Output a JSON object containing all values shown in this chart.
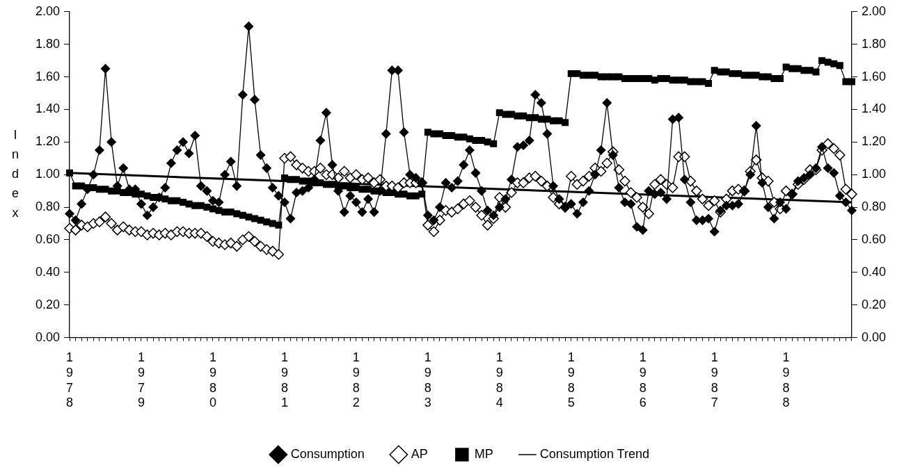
{
  "chart_data": {
    "type": "line",
    "ylabel": "Index",
    "categories": [
      "1978",
      null,
      null,
      null,
      null,
      null,
      null,
      null,
      null,
      null,
      null,
      null,
      "1979",
      null,
      null,
      null,
      null,
      null,
      null,
      null,
      null,
      null,
      null,
      null,
      "1980",
      null,
      null,
      null,
      null,
      null,
      null,
      null,
      null,
      null,
      null,
      null,
      "1981",
      null,
      null,
      null,
      null,
      null,
      null,
      null,
      null,
      null,
      null,
      null,
      "1982",
      null,
      null,
      null,
      null,
      null,
      null,
      null,
      null,
      null,
      null,
      null,
      "1983",
      null,
      null,
      null,
      null,
      null,
      null,
      null,
      null,
      null,
      null,
      null,
      "1984",
      null,
      null,
      null,
      null,
      null,
      null,
      null,
      null,
      null,
      null,
      null,
      "1985",
      null,
      null,
      null,
      null,
      null,
      null,
      null,
      null,
      null,
      null,
      null,
      "1986",
      null,
      null,
      null,
      null,
      null,
      null,
      null,
      null,
      null,
      null,
      null,
      "1987",
      null,
      null,
      null,
      null,
      null,
      null,
      null,
      null,
      null,
      null,
      null,
      "1988",
      null,
      null,
      null,
      null,
      null,
      null,
      null,
      null,
      null,
      null,
      null
    ],
    "series": [
      {
        "name": "Consumption",
        "color": "#000000",
        "marker": "diamond",
        "values": [
          0.76,
          0.72,
          0.82,
          0.91,
          1.0,
          1.15,
          1.65,
          1.2,
          0.93,
          1.04,
          0.91,
          0.91,
          0.82,
          0.75,
          0.8,
          0.86,
          0.92,
          1.07,
          1.15,
          1.2,
          1.13,
          1.24,
          0.93,
          0.9,
          0.84,
          0.83,
          1.0,
          1.08,
          0.93,
          1.49,
          1.91,
          1.46,
          1.12,
          1.04,
          0.92,
          0.87,
          0.83,
          0.73,
          0.89,
          0.9,
          0.92,
          0.97,
          1.21,
          1.38,
          1.06,
          0.9,
          0.77,
          0.87,
          0.83,
          0.77,
          0.85,
          0.77,
          0.9,
          1.25,
          1.64,
          1.64,
          1.26,
          1.0,
          0.98,
          0.95,
          0.75,
          0.72,
          0.8,
          0.95,
          0.92,
          0.96,
          1.06,
          1.15,
          1.01,
          0.9,
          0.78,
          0.75,
          0.8,
          0.85,
          0.97,
          1.17,
          1.18,
          1.21,
          1.49,
          1.44,
          1.25,
          0.93,
          0.85,
          0.8,
          0.82,
          0.76,
          0.83,
          0.9,
          1.0,
          1.15,
          1.44,
          1.12,
          0.92,
          0.83,
          0.82,
          0.68,
          0.66,
          0.9,
          0.88,
          0.89,
          0.85,
          1.34,
          1.35,
          0.97,
          0.83,
          0.72,
          0.72,
          0.73,
          0.65,
          0.78,
          0.81,
          0.81,
          0.82,
          0.9,
          1.0,
          1.3,
          0.95,
          0.8,
          0.73,
          0.83,
          0.79,
          0.88,
          0.96,
          0.98,
          1.0,
          1.04,
          1.17,
          1.04,
          1.01,
          0.87,
          0.83,
          0.78
        ]
      },
      {
        "name": "AP",
        "color": "#ffffff",
        "marker": "diamond",
        "values": [
          0.67,
          0.66,
          0.69,
          0.68,
          0.7,
          0.71,
          0.74,
          0.7,
          0.66,
          0.68,
          0.66,
          0.65,
          0.65,
          0.63,
          0.64,
          0.63,
          0.64,
          0.63,
          0.65,
          0.65,
          0.64,
          0.64,
          0.64,
          0.62,
          0.59,
          0.58,
          0.57,
          0.58,
          0.56,
          0.6,
          0.62,
          0.59,
          0.56,
          0.54,
          0.53,
          0.51,
          1.1,
          1.11,
          1.06,
          1.04,
          1.02,
          1.02,
          1.04,
          1.0,
          1.0,
          0.98,
          1.02,
          0.98,
          1.0,
          0.97,
          0.98,
          0.95,
          0.97,
          0.93,
          0.93,
          0.92,
          0.95,
          0.95,
          0.95,
          0.95,
          0.69,
          0.65,
          0.72,
          0.78,
          0.77,
          0.79,
          0.82,
          0.84,
          0.8,
          0.75,
          0.69,
          0.73,
          0.86,
          0.8,
          0.89,
          0.95,
          0.95,
          0.98,
          0.99,
          0.96,
          0.93,
          0.86,
          0.82,
          0.8,
          0.99,
          0.94,
          0.96,
          0.99,
          1.04,
          1.02,
          1.07,
          1.14,
          1.03,
          0.96,
          0.89,
          0.86,
          0.8,
          0.76,
          0.94,
          0.97,
          0.94,
          0.92,
          1.11,
          1.11,
          0.96,
          0.9,
          0.85,
          0.81,
          0.84,
          0.77,
          0.85,
          0.9,
          0.91,
          0.9,
          1.02,
          1.09,
          0.98,
          0.96,
          0.83,
          0.79,
          0.9,
          0.88,
          0.94,
          0.97,
          1.03,
          1.03,
          1.15,
          1.19,
          1.16,
          1.12,
          0.91,
          0.88
        ]
      },
      {
        "name": "MP",
        "color": "#000000",
        "marker": "square",
        "values": [
          1.01,
          0.93,
          0.93,
          0.92,
          0.92,
          0.91,
          0.91,
          0.9,
          0.9,
          0.89,
          0.89,
          0.88,
          0.88,
          0.87,
          0.86,
          0.86,
          0.85,
          0.84,
          0.84,
          0.83,
          0.82,
          0.81,
          0.81,
          0.8,
          0.79,
          0.78,
          0.77,
          0.77,
          0.76,
          0.75,
          0.74,
          0.73,
          0.72,
          0.71,
          0.7,
          0.69,
          0.98,
          0.97,
          0.97,
          0.96,
          0.96,
          0.95,
          0.95,
          0.94,
          0.94,
          0.93,
          0.93,
          0.92,
          0.92,
          0.91,
          0.91,
          0.9,
          0.9,
          0.89,
          0.89,
          0.88,
          0.88,
          0.87,
          0.87,
          0.88,
          1.26,
          1.25,
          1.25,
          1.24,
          1.24,
          1.23,
          1.23,
          1.22,
          1.21,
          1.21,
          1.2,
          1.19,
          1.38,
          1.37,
          1.37,
          1.36,
          1.36,
          1.35,
          1.35,
          1.34,
          1.34,
          1.33,
          1.33,
          1.32,
          1.62,
          1.62,
          1.61,
          1.61,
          1.61,
          1.6,
          1.6,
          1.6,
          1.6,
          1.59,
          1.59,
          1.59,
          1.59,
          1.59,
          1.58,
          1.59,
          1.59,
          1.58,
          1.58,
          1.58,
          1.57,
          1.57,
          1.57,
          1.56,
          1.64,
          1.63,
          1.63,
          1.62,
          1.62,
          1.61,
          1.61,
          1.61,
          1.6,
          1.6,
          1.59,
          1.59,
          1.66,
          1.65,
          1.65,
          1.64,
          1.64,
          1.63,
          1.7,
          1.69,
          1.68,
          1.67,
          1.57,
          1.57
        ]
      },
      {
        "name": "Consumption Trend",
        "color": "#000000",
        "marker": "none",
        "values": [
          1.01,
          null,
          null,
          null,
          null,
          null,
          null,
          null,
          null,
          null,
          null,
          null,
          null,
          null,
          null,
          null,
          null,
          null,
          null,
          null,
          null,
          null,
          null,
          null,
          null,
          null,
          null,
          null,
          null,
          null,
          null,
          null,
          null,
          null,
          null,
          null,
          null,
          null,
          null,
          null,
          null,
          null,
          null,
          null,
          null,
          null,
          null,
          null,
          null,
          null,
          null,
          null,
          null,
          null,
          null,
          null,
          null,
          null,
          null,
          null,
          null,
          null,
          null,
          null,
          null,
          null,
          null,
          null,
          null,
          null,
          null,
          null,
          null,
          null,
          null,
          null,
          null,
          null,
          null,
          null,
          null,
          null,
          null,
          null,
          null,
          null,
          null,
          null,
          null,
          null,
          null,
          null,
          null,
          null,
          null,
          null,
          null,
          null,
          null,
          null,
          null,
          null,
          null,
          null,
          null,
          null,
          null,
          null,
          null,
          null,
          null,
          null,
          null,
          null,
          null,
          null,
          null,
          null,
          null,
          null,
          null,
          null,
          null,
          null,
          null,
          null,
          null,
          null,
          null,
          null,
          null,
          0.83
        ]
      }
    ],
    "ylim": [
      0,
      2
    ],
    "yticks": [
      {
        "value": 0,
        "label": "0.00"
      },
      {
        "value": 0.2,
        "label": "0.20"
      },
      {
        "value": 0.4,
        "label": "0.40"
      },
      {
        "value": 0.6,
        "label": "0.60"
      },
      {
        "value": 0.8,
        "label": "0.80"
      },
      {
        "value": 1,
        "label": "1.00"
      },
      {
        "value": 1.2,
        "label": "1.20"
      },
      {
        "value": 1.4,
        "label": "1.40"
      },
      {
        "value": 1.6,
        "label": "1.60"
      },
      {
        "value": 1.8,
        "label": "1.80"
      },
      {
        "value": 2,
        "label": "2.00"
      }
    ],
    "y2lim": [
      0,
      2
    ],
    "y2ticks": [
      {
        "value": 0,
        "label": "0.00"
      },
      {
        "value": 0.2,
        "label": "0.20"
      },
      {
        "value": 0.4,
        "label": "0.40"
      },
      {
        "value": 0.6,
        "label": "0.60"
      },
      {
        "value": 0.8,
        "label": "0.80"
      },
      {
        "value": 1,
        "label": "1.00"
      },
      {
        "value": 1.2,
        "label": "1.20"
      },
      {
        "value": 1.4,
        "label": "1.40"
      },
      {
        "value": 1.6,
        "label": "1.60"
      },
      {
        "value": 1.8,
        "label": "1.80"
      },
      {
        "value": 2,
        "label": "2.00"
      }
    ],
    "grid": false,
    "legend": "bottom",
    "line_style": "solid"
  }
}
